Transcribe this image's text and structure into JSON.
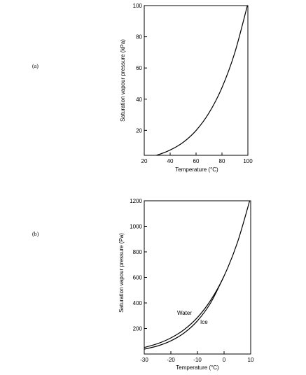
{
  "chart_data": [
    {
      "type": "line",
      "panel_label": "(a)",
      "xlabel": "Temperature (°C)",
      "ylabel": "Saturation vapour pressure (kPa)",
      "xlim": [
        20,
        100
      ],
      "ylim": [
        4,
        100
      ],
      "x_ticks": [
        20,
        40,
        60,
        80,
        100
      ],
      "y_ticks": [
        20,
        40,
        60,
        80,
        100
      ],
      "grid": false,
      "series": [
        {
          "x": [
            20,
            30,
            40,
            50,
            60,
            70,
            80,
            90,
            100
          ],
          "y": [
            2.3,
            4.2,
            7.4,
            12.3,
            19.9,
            31.2,
            47.4,
            70.1,
            101.3
          ]
        }
      ]
    },
    {
      "type": "line",
      "panel_label": "(b)",
      "xlabel": "Temperature (°C)",
      "ylabel": "Saturation vapour pressure (Pa)",
      "xlim": [
        -30,
        10
      ],
      "ylim": [
        0,
        1200
      ],
      "x_ticks": [
        -30,
        -20,
        -10,
        0,
        10
      ],
      "y_ticks": [
        200,
        400,
        600,
        800,
        1000,
        1200
      ],
      "grid": false,
      "series": [
        {
          "name": "Water",
          "x": [
            -30,
            -25,
            -20,
            -15,
            -10,
            -5,
            0,
            5,
            10
          ],
          "y": [
            51,
            81,
            126,
            191,
            286,
            422,
            611,
            872,
            1228
          ]
        },
        {
          "name": "Ice",
          "x": [
            -30,
            -25,
            -20,
            -15,
            -10,
            -5,
            0
          ],
          "y": [
            38,
            63,
            103,
            165,
            260,
            402,
            611
          ]
        }
      ]
    }
  ]
}
